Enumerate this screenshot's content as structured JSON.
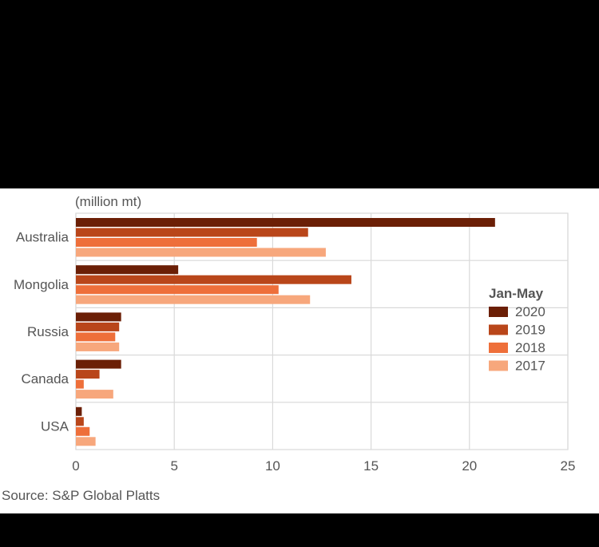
{
  "chart_data": {
    "type": "bar",
    "orientation": "horizontal",
    "unit_label": "(million mt)",
    "categories": [
      "Australia",
      "Mongolia",
      "Russia",
      "Canada",
      "USA"
    ],
    "legend_title": "Jan-May",
    "legend_position": "right",
    "series": [
      {
        "name": "2020",
        "color": "#6b1f06",
        "values": [
          21.3,
          5.2,
          2.3,
          2.3,
          0.3
        ]
      },
      {
        "name": "2019",
        "color": "#b9461a",
        "values": [
          11.8,
          14.0,
          2.2,
          1.2,
          0.4
        ]
      },
      {
        "name": "2018",
        "color": "#ee6f3a",
        "values": [
          9.2,
          10.3,
          2.0,
          0.4,
          0.7
        ]
      },
      {
        "name": "2017",
        "color": "#f7a77c",
        "values": [
          12.7,
          11.9,
          2.2,
          1.9,
          1.0
        ]
      }
    ],
    "xlim": [
      0,
      25
    ],
    "xticks": [
      0,
      5,
      10,
      15,
      20,
      25
    ],
    "grid": true,
    "source": "Source: S&P Global Platts"
  }
}
